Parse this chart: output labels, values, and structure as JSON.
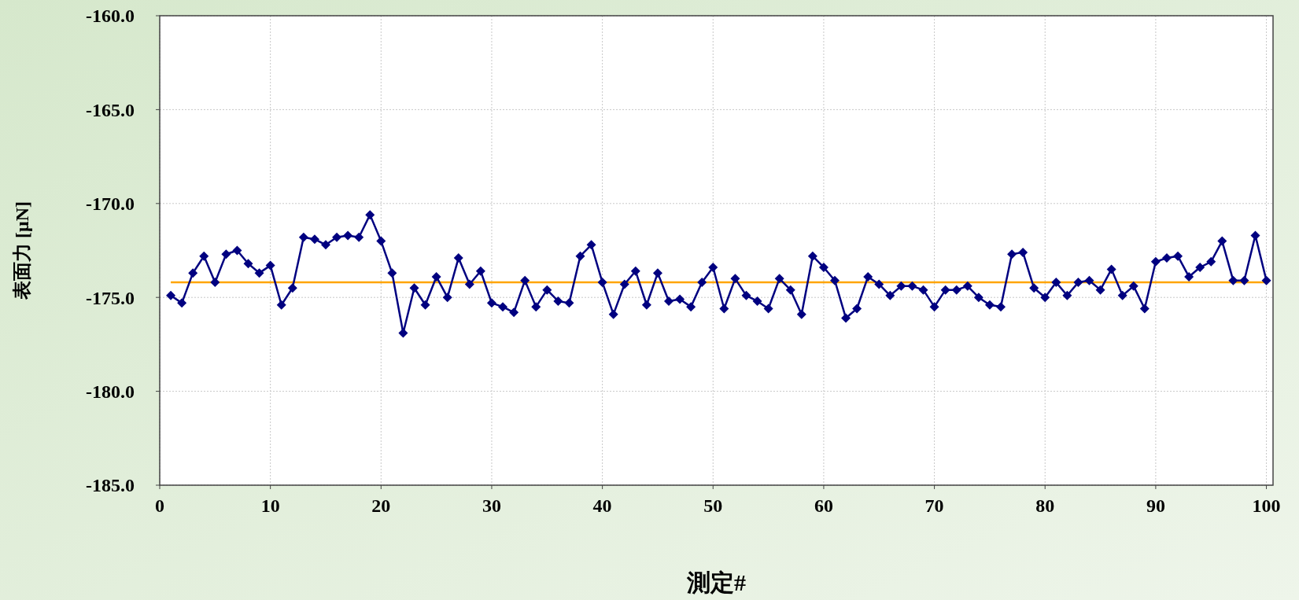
{
  "chart_data": {
    "type": "line",
    "xlabel": "測定#",
    "ylabel": "表面力 [μN]",
    "x": [
      1,
      2,
      3,
      4,
      5,
      6,
      7,
      8,
      9,
      10,
      11,
      12,
      13,
      14,
      15,
      16,
      17,
      18,
      19,
      20,
      21,
      22,
      23,
      24,
      25,
      26,
      27,
      28,
      29,
      30,
      31,
      32,
      33,
      34,
      35,
      36,
      37,
      38,
      39,
      40,
      41,
      42,
      43,
      44,
      45,
      46,
      47,
      48,
      49,
      50,
      51,
      52,
      53,
      54,
      55,
      56,
      57,
      58,
      59,
      60,
      61,
      62,
      63,
      64,
      65,
      66,
      67,
      68,
      69,
      70,
      71,
      72,
      73,
      74,
      75,
      76,
      77,
      78,
      79,
      80,
      81,
      82,
      83,
      84,
      85,
      86,
      87,
      88,
      89,
      90,
      91,
      92,
      93,
      94,
      95,
      96,
      97,
      98,
      99,
      100
    ],
    "series": [
      {
        "color": "#000080",
        "values": [
          -174.9,
          -175.3,
          -173.7,
          -172.8,
          -174.2,
          -172.7,
          -172.5,
          -173.2,
          -173.7,
          -173.3,
          -175.4,
          -174.5,
          -171.8,
          -171.9,
          -172.2,
          -171.8,
          -171.7,
          -171.8,
          -170.6,
          -172.0,
          -173.7,
          -176.9,
          -174.5,
          -175.4,
          -173.9,
          -175.0,
          -172.9,
          -174.3,
          -173.6,
          -175.3,
          -175.5,
          -175.8,
          -174.1,
          -175.5,
          -174.6,
          -175.2,
          -175.3,
          -172.8,
          -172.2,
          -174.2,
          -175.9,
          -174.3,
          -173.6,
          -175.4,
          -173.7,
          -175.2,
          -175.1,
          -175.5,
          -174.2,
          -173.4,
          -175.6,
          -174.0,
          -174.9,
          -175.2,
          -175.6,
          -174.0,
          -174.6,
          -175.9,
          -172.8,
          -173.4,
          -174.1,
          -176.1,
          -175.6,
          -173.9,
          -174.3,
          -174.9,
          -174.4,
          -174.4,
          -174.6,
          -175.5,
          -174.6,
          -174.6,
          -174.4,
          -175.0,
          -175.4,
          -175.5,
          -172.7,
          -172.6,
          -174.5,
          -175.0,
          -174.2,
          -174.9,
          -174.2,
          -174.1,
          -174.6,
          -173.5,
          -174.9,
          -174.4,
          -175.6,
          -173.1,
          -172.9,
          -172.8,
          -173.9,
          -173.4,
          -173.1,
          -172.0,
          -174.1,
          -174.1,
          -171.7,
          -174.1
        ]
      }
    ],
    "marker": "diamond",
    "line_style": "solid",
    "grid": true,
    "ref_lines": [
      {
        "axis": "y",
        "value": -174.2,
        "color": "#ffa500"
      }
    ],
    "xlim": [
      0,
      100.6
    ],
    "xticks": [
      0,
      10,
      20,
      30,
      40,
      50,
      60,
      70,
      80,
      90,
      100
    ],
    "ylim": [
      -185,
      -160
    ],
    "yticks": [
      {
        "value": -185,
        "label": "-185.0"
      },
      {
        "value": -180,
        "label": "-180.0"
      },
      {
        "value": -175,
        "label": "-175.0"
      },
      {
        "value": -170,
        "label": "-170.0"
      },
      {
        "value": -165,
        "label": "-165.0"
      },
      {
        "value": -160,
        "label": "-160.0"
      }
    ]
  }
}
